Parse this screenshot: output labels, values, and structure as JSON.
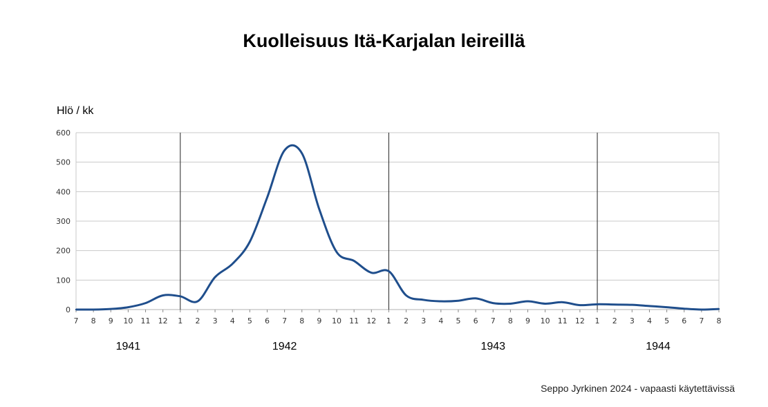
{
  "chart_data": {
    "type": "line",
    "title": "Kuolleisuus Itä-Karjalan leireillä",
    "ylabel": "Hlö / kk",
    "xlabel": "",
    "ylim": [
      0,
      600
    ],
    "yticks": [
      0,
      100,
      200,
      300,
      400,
      500,
      600
    ],
    "grid": true,
    "x_tick_labels": [
      "7",
      "8",
      "9",
      "10",
      "11",
      "12",
      "1",
      "2",
      "3",
      "4",
      "5",
      "6",
      "7",
      "8",
      "9",
      "10",
      "11",
      "12",
      "1",
      "2",
      "3",
      "4",
      "5",
      "6",
      "7",
      "8",
      "9",
      "10",
      "11",
      "12",
      "1",
      "2",
      "3",
      "4",
      "5",
      "6",
      "7",
      "8"
    ],
    "year_labels": [
      "1941",
      "1942",
      "1943",
      "1944"
    ],
    "series": [
      {
        "color": "#1f4e8c",
        "values": [
          0,
          0,
          2,
          8,
          22,
          48,
          45,
          28,
          110,
          155,
          230,
          380,
          540,
          530,
          340,
          195,
          165,
          125,
          130,
          48,
          33,
          28,
          30,
          38,
          22,
          20,
          28,
          20,
          25,
          15,
          18,
          17,
          16,
          12,
          8,
          3,
          0,
          2
        ]
      }
    ]
  },
  "credit": "Seppo Jyrkinen 2024 - vapaasti käytettävissä"
}
